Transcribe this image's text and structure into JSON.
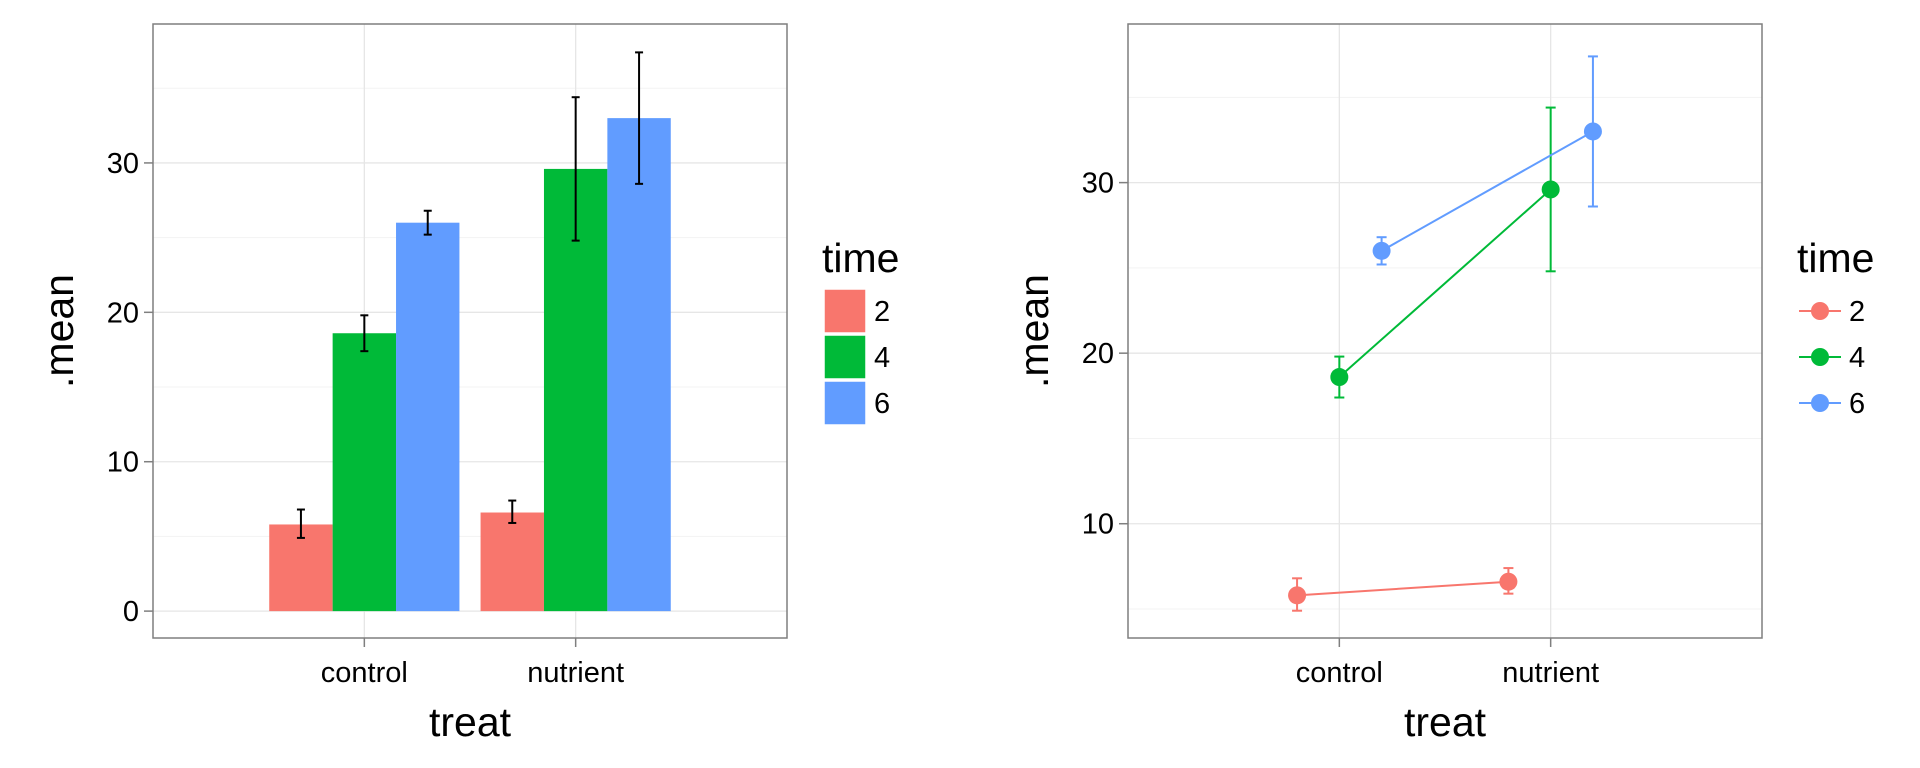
{
  "chart_data": [
    {
      "type": "bar",
      "categories": [
        "control",
        "nutrient"
      ],
      "series": [
        {
          "name": "2",
          "color": "#F8766D",
          "values": [
            5.8,
            6.6
          ],
          "error_low": [
            4.9,
            5.9
          ],
          "error_high": [
            6.8,
            7.4
          ]
        },
        {
          "name": "4",
          "color": "#00BA38",
          "values": [
            18.6,
            29.6
          ],
          "error_low": [
            17.4,
            24.8
          ],
          "error_high": [
            19.8,
            34.4
          ]
        },
        {
          "name": "6",
          "color": "#619CFF",
          "values": [
            26.0,
            33.0
          ],
          "error_low": [
            25.2,
            28.6
          ],
          "error_high": [
            26.8,
            37.4
          ]
        }
      ],
      "xlabel": "treat",
      "ylabel": ".mean",
      "ylim": [
        -1.8,
        39.3
      ],
      "yticks": [
        0,
        10,
        20,
        30
      ],
      "grid": true,
      "legend": {
        "title": "time",
        "position": "right"
      }
    },
    {
      "type": "line",
      "categories": [
        "control",
        "nutrient"
      ],
      "series": [
        {
          "name": "2",
          "color": "#F8766D",
          "values": [
            5.8,
            6.6
          ],
          "error_low": [
            4.9,
            5.9
          ],
          "error_high": [
            6.8,
            7.4
          ]
        },
        {
          "name": "4",
          "color": "#00BA38",
          "values": [
            18.6,
            29.6
          ],
          "error_low": [
            17.4,
            24.8
          ],
          "error_high": [
            19.8,
            34.4
          ]
        },
        {
          "name": "6",
          "color": "#619CFF",
          "values": [
            26.0,
            33.0
          ],
          "error_low": [
            25.2,
            28.6
          ],
          "error_high": [
            26.8,
            37.4
          ]
        }
      ],
      "dodge": true,
      "xlabel": "treat",
      "ylabel": ".mean",
      "ylim": [
        3.3,
        39.3
      ],
      "yticks": [
        10,
        20,
        30
      ],
      "grid": true,
      "legend": {
        "title": "time",
        "position": "right"
      }
    }
  ]
}
